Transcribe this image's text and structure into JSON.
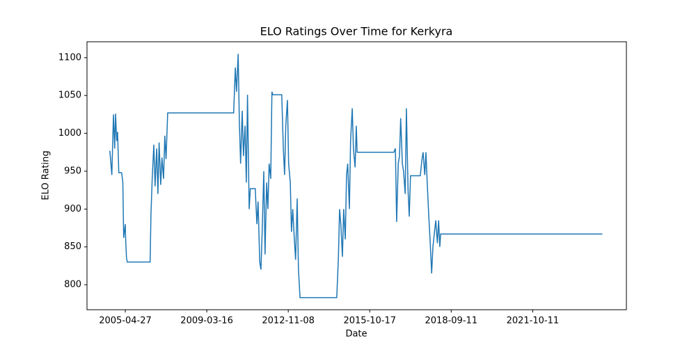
{
  "chart_data": {
    "type": "line",
    "title": "ELO Ratings Over Time for Kerkyra",
    "x_label": "Date",
    "y_label": "ELO Rating",
    "x": [
      0,
      5,
      9,
      12,
      14,
      17,
      19,
      22,
      29,
      32,
      34,
      38,
      39,
      41,
      43,
      99,
      101,
      104,
      108,
      111,
      115,
      118,
      121,
      125,
      128,
      132,
      135,
      138,
      142,
      304,
      308,
      311,
      315,
      318,
      321,
      325,
      328,
      332,
      335,
      338,
      342,
      345,
      357,
      361,
      364,
      368,
      371,
      374,
      378,
      381,
      385,
      388,
      391,
      395,
      398,
      400,
      422,
      426,
      429,
      432,
      436,
      439,
      443,
      446,
      449,
      453,
      456,
      460,
      463,
      467,
      557,
      561,
      564,
      567,
      571,
      574,
      578,
      581,
      584,
      588,
      591,
      595,
      598,
      602,
      605,
      607,
      697,
      701,
      704,
      708,
      711,
      714,
      718,
      721,
      725,
      728,
      732,
      735,
      738,
      762,
      766,
      769,
      773,
      776,
      779,
      783,
      786,
      790,
      793,
      797,
      800,
      804,
      807,
      810,
      812,
      1209
    ],
    "y": [
      977,
      945,
      1025,
      980,
      1026,
      990,
      1002,
      948,
      948,
      935,
      862,
      880,
      858,
      835,
      830,
      830,
      893,
      940,
      985,
      930,
      980,
      920,
      988,
      932,
      968,
      940,
      997,
      966,
      1027,
      1027,
      1087,
      1055,
      1105,
      1015,
      960,
      1030,
      970,
      1010,
      935,
      1051,
      900,
      927,
      927,
      880,
      910,
      830,
      820,
      870,
      950,
      840,
      935,
      900,
      960,
      940,
      1055,
      1051,
      1051,
      980,
      945,
      1010,
      1044,
      960,
      935,
      870,
      900,
      860,
      833,
      914,
      820,
      783,
      783,
      835,
      900,
      880,
      837,
      900,
      860,
      945,
      960,
      900,
      990,
      1033,
      980,
      955,
      1010,
      975,
      975,
      980,
      883,
      960,
      970,
      1020,
      960,
      950,
      920,
      1033,
      925,
      890,
      944,
      944,
      965,
      975,
      945,
      975,
      935,
      890,
      860,
      815,
      850,
      870,
      885,
      855,
      885,
      850,
      867,
      867
    ],
    "color": "#1f77b4",
    "xlim": [
      -56,
      1268
    ],
    "xticks": [
      {
        "value": 38,
        "label": "2005-04-27"
      },
      {
        "value": 238,
        "label": "2009-03-16"
      },
      {
        "value": 438,
        "label": "2012-11-08"
      },
      {
        "value": 638,
        "label": "2015-10-17"
      },
      {
        "value": 838,
        "label": "2018-09-11"
      },
      {
        "value": 1038,
        "label": "2021-10-11"
      }
    ],
    "ylim": [
      767,
      1121
    ],
    "yticks": [
      800,
      850,
      900,
      950,
      1000,
      1050,
      1100
    ]
  }
}
